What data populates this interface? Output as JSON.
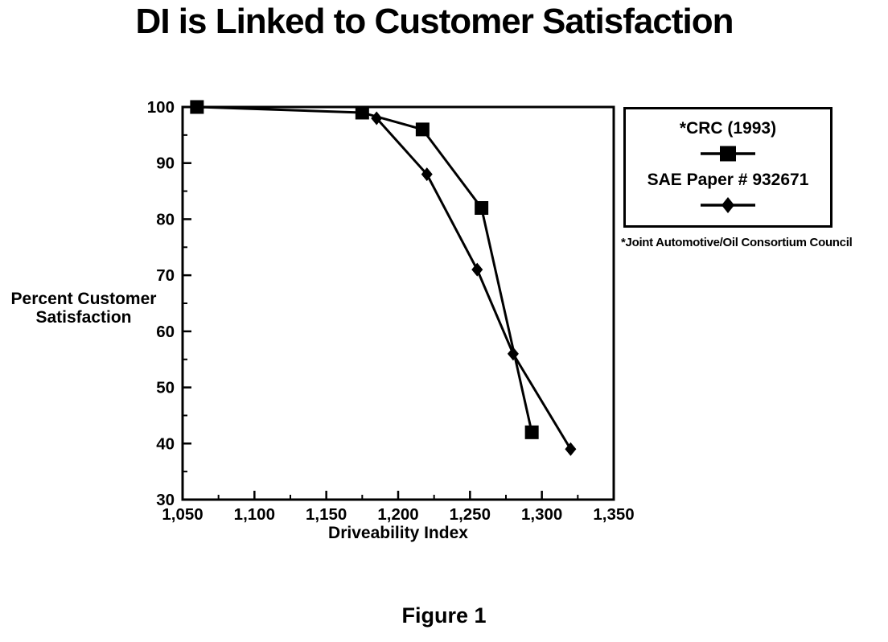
{
  "chart_data": {
    "type": "line",
    "title": "DI is Linked to Customer Satisfaction",
    "xlabel": "Driveability Index",
    "ylabel": "Percent Customer Satisfaction",
    "ylabel_lines": [
      "Percent Customer",
      "Satisfaction"
    ],
    "xlim": [
      1050,
      1350
    ],
    "ylim": [
      30,
      100
    ],
    "x_ticks": [
      1050,
      1100,
      1150,
      1200,
      1250,
      1300,
      1350
    ],
    "x_tick_labels": [
      "1,050",
      "1,100",
      "1,150",
      "1,200",
      "1,250",
      "1,300",
      "1,350"
    ],
    "y_ticks": [
      30,
      40,
      50,
      60,
      70,
      80,
      90,
      100
    ],
    "y_tick_labels": [
      "30",
      "40",
      "50",
      "60",
      "70",
      "80",
      "90",
      "100"
    ],
    "grid": false,
    "legend_position": "outside-top-right",
    "line_color": "#000000",
    "series": [
      {
        "name": "*CRC (1993)",
        "marker": "square",
        "color": "#000000",
        "points": [
          [
            1060,
            100
          ],
          [
            1175,
            99
          ],
          [
            1217,
            96
          ],
          [
            1258,
            82
          ],
          [
            1293,
            42
          ]
        ]
      },
      {
        "name": "SAE Paper # 932671",
        "marker": "diamond",
        "color": "#000000",
        "points": [
          [
            1185,
            98
          ],
          [
            1220,
            88
          ],
          [
            1255,
            71
          ],
          [
            1280,
            56
          ],
          [
            1320,
            39
          ]
        ]
      }
    ],
    "footnote": "*Joint Automotive/Oil Consortium Council",
    "caption": "Figure 1"
  }
}
